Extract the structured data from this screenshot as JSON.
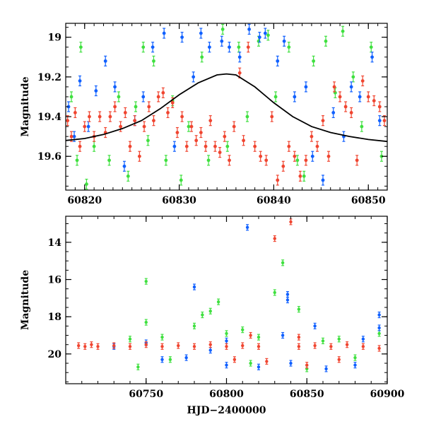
{
  "chart_data": [
    {
      "type": "scatter",
      "title": "",
      "xlabel": "",
      "ylabel": "Magnitude",
      "xlim": [
        60818,
        60852
      ],
      "ylim": [
        19.77,
        18.93
      ],
      "y_inverted": true,
      "xticks": [
        60820,
        60830,
        60840,
        60850
      ],
      "xtick_labels": [
        "60820",
        "60830",
        "60840",
        "60850"
      ],
      "yticks": [
        19.0,
        19.2,
        19.4,
        19.6
      ],
      "ytick_labels": [
        "19",
        "19.2",
        "19.4",
        "19.6"
      ],
      "grid": false,
      "colors": {
        "green": "#3fe03f",
        "blue": "#1060ff",
        "red": "#f04530",
        "model": "#000000"
      },
      "series": [
        {
          "color": "green",
          "points": [
            [
              60818.6,
              19.3
            ],
            [
              60819.2,
              19.62
            ],
            [
              60819.6,
              19.05
            ],
            [
              60820.2,
              19.74
            ],
            [
              60821.0,
              19.55
            ],
            [
              60822.6,
              19.62
            ],
            [
              60823.6,
              19.3
            ],
            [
              60824.6,
              19.7
            ],
            [
              60825.4,
              19.35
            ],
            [
              60826.2,
              19.05
            ],
            [
              60826.7,
              19.52
            ],
            [
              60827.3,
              19.12
            ],
            [
              60828.6,
              19.62
            ],
            [
              60829.3,
              19.32
            ],
            [
              60830.2,
              19.72
            ],
            [
              60831.0,
              19.45
            ],
            [
              60832.4,
              19.1
            ],
            [
              60833.1,
              19.62
            ],
            [
              60834.6,
              18.96
            ],
            [
              60835.1,
              19.55
            ],
            [
              60836.3,
              19.05
            ],
            [
              60837.2,
              19.4
            ],
            [
              60838.4,
              19.02
            ],
            [
              60839.4,
              18.99
            ],
            [
              60840.2,
              19.3
            ],
            [
              60841.6,
              19.05
            ],
            [
              60842.5,
              19.62
            ],
            [
              60843.2,
              19.7
            ],
            [
              60844.2,
              19.12
            ],
            [
              60845.5,
              19.02
            ],
            [
              60846.5,
              19.28
            ],
            [
              60847.3,
              18.97
            ],
            [
              60848.4,
              19.2
            ],
            [
              60849.3,
              19.45
            ],
            [
              60850.3,
              19.05
            ],
            [
              60851.4,
              19.6
            ]
          ]
        },
        {
          "color": "blue",
          "points": [
            [
              60818.3,
              19.35
            ],
            [
              60818.9,
              19.5
            ],
            [
              60819.5,
              19.22
            ],
            [
              60820.4,
              19.45
            ],
            [
              60821.2,
              19.27
            ],
            [
              60822.2,
              19.12
            ],
            [
              60823.2,
              19.25
            ],
            [
              60824.2,
              19.65
            ],
            [
              60825.3,
              19.42
            ],
            [
              60826.2,
              19.3
            ],
            [
              60827.2,
              19.05
            ],
            [
              60828.4,
              18.98
            ],
            [
              60829.5,
              19.55
            ],
            [
              60830.3,
              19.0
            ],
            [
              60831.5,
              19.2
            ],
            [
              60832.3,
              18.98
            ],
            [
              60833.2,
              19.05
            ],
            [
              60834.5,
              19.02
            ],
            [
              60835.3,
              19.05
            ],
            [
              60836.4,
              19.1
            ],
            [
              60837.4,
              18.96
            ],
            [
              60838.5,
              19.0
            ],
            [
              60839.1,
              18.98
            ],
            [
              60840.4,
              19.12
            ],
            [
              60841.1,
              19.02
            ],
            [
              60842.2,
              19.3
            ],
            [
              60843.4,
              19.25
            ],
            [
              60844.1,
              19.6
            ],
            [
              60845.2,
              19.72
            ],
            [
              60846.3,
              19.38
            ],
            [
              60847.4,
              19.5
            ],
            [
              60848.2,
              19.25
            ],
            [
              60849.1,
              19.3
            ],
            [
              60850.4,
              19.1
            ],
            [
              60851.2,
              19.42
            ]
          ]
        },
        {
          "color": "red",
          "points": [
            [
              60818.2,
              19.42
            ],
            [
              60818.6,
              19.5
            ],
            [
              60819.0,
              19.38
            ],
            [
              60819.5,
              19.55
            ],
            [
              60820.0,
              19.45
            ],
            [
              60820.5,
              19.4
            ],
            [
              60821.0,
              19.5
            ],
            [
              60821.6,
              19.4
            ],
            [
              60822.2,
              19.48
            ],
            [
              60822.7,
              19.4
            ],
            [
              60823.2,
              19.35
            ],
            [
              60823.8,
              19.45
            ],
            [
              60824.3,
              19.38
            ],
            [
              60824.8,
              19.55
            ],
            [
              60825.3,
              19.42
            ],
            [
              60825.8,
              19.6
            ],
            [
              60826.3,
              19.45
            ],
            [
              60826.8,
              19.35
            ],
            [
              60827.3,
              19.42
            ],
            [
              60827.8,
              19.3
            ],
            [
              60828.3,
              19.28
            ],
            [
              60828.8,
              19.38
            ],
            [
              60829.3,
              19.33
            ],
            [
              60829.8,
              19.48
            ],
            [
              60830.3,
              19.4
            ],
            [
              60830.8,
              19.55
            ],
            [
              60831.3,
              19.45
            ],
            [
              60831.8,
              19.52
            ],
            [
              60832.3,
              19.48
            ],
            [
              60832.8,
              19.55
            ],
            [
              60833.3,
              19.42
            ],
            [
              60833.8,
              19.55
            ],
            [
              60834.3,
              19.58
            ],
            [
              60834.8,
              19.5
            ],
            [
              60835.3,
              19.62
            ],
            [
              60835.8,
              19.45
            ],
            [
              60836.4,
              19.18
            ],
            [
              60836.8,
              19.52
            ],
            [
              60837.3,
              19.05
            ],
            [
              60838.0,
              19.55
            ],
            [
              60838.6,
              19.6
            ],
            [
              60839.2,
              19.62
            ],
            [
              60839.8,
              19.4
            ],
            [
              60840.4,
              19.72
            ],
            [
              60841.0,
              19.65
            ],
            [
              60841.6,
              19.55
            ],
            [
              60842.2,
              19.6
            ],
            [
              60842.8,
              19.7
            ],
            [
              60843.4,
              19.62
            ],
            [
              60844.0,
              19.5
            ],
            [
              60844.6,
              19.55
            ],
            [
              60845.2,
              19.42
            ],
            [
              60845.8,
              19.6
            ],
            [
              60846.4,
              19.25
            ],
            [
              60847.0,
              19.3
            ],
            [
              60847.6,
              19.35
            ],
            [
              60848.2,
              19.38
            ],
            [
              60848.8,
              19.62
            ],
            [
              60849.4,
              19.22
            ],
            [
              60850.0,
              19.3
            ],
            [
              60850.6,
              19.32
            ],
            [
              60851.2,
              19.35
            ],
            [
              60851.7,
              19.42
            ]
          ]
        },
        {
          "color": "model",
          "kind": "line",
          "points": [
            [
              60818.0,
              19.52
            ],
            [
              60820.0,
              19.51
            ],
            [
              60822.0,
              19.49
            ],
            [
              60824.0,
              19.46
            ],
            [
              60826.0,
              19.42
            ],
            [
              60828.0,
              19.36
            ],
            [
              60830.0,
              19.29
            ],
            [
              60832.0,
              19.23
            ],
            [
              60834.0,
              19.19
            ],
            [
              60835.0,
              19.185
            ],
            [
              60836.0,
              19.19
            ],
            [
              60838.0,
              19.25
            ],
            [
              60840.0,
              19.33
            ],
            [
              60842.0,
              19.4
            ],
            [
              60844.0,
              19.45
            ],
            [
              60846.0,
              19.48
            ],
            [
              60848.0,
              19.5
            ],
            [
              60850.0,
              19.515
            ],
            [
              60852.0,
              19.525
            ]
          ]
        }
      ]
    },
    {
      "type": "scatter",
      "title": "",
      "xlabel": "HJD−2400000",
      "ylabel": "Magnitude",
      "xlim": [
        60700,
        60900
      ],
      "ylim": [
        21.6,
        12.6
      ],
      "y_inverted": true,
      "xticks": [
        60750,
        60800,
        60850,
        60900
      ],
      "xtick_labels": [
        "60750",
        "60800",
        "60850",
        "60900"
      ],
      "yticks": [
        14,
        16,
        18,
        20
      ],
      "ytick_labels": [
        "14",
        "16",
        "18",
        "20"
      ],
      "grid": false,
      "colors": {
        "green": "#3fe03f",
        "blue": "#1060ff",
        "red": "#f04530"
      },
      "series": [
        {
          "color": "green",
          "points": [
            [
              60750,
              16.1
            ],
            [
              60750,
              18.3
            ],
            [
              60760,
              19.1
            ],
            [
              60780,
              18.5
            ],
            [
              60785,
              17.9
            ],
            [
              60790,
              17.7
            ],
            [
              60795,
              17.2
            ],
            [
              60800,
              18.9
            ],
            [
              60810,
              18.7
            ],
            [
              60830,
              16.7
            ],
            [
              60835,
              15.1
            ],
            [
              60845,
              17.6
            ],
            [
              60870,
              19.2
            ],
            [
              60895,
              18.9
            ],
            [
              60745,
              20.7
            ],
            [
              60765,
              20.3
            ],
            [
              60815,
              20.5
            ],
            [
              60850,
              20.8
            ],
            [
              60880,
              20.2
            ],
            [
              60740,
              19.2
            ],
            [
              60820,
              19.1
            ],
            [
              60860,
              19.3
            ]
          ]
        },
        {
          "color": "blue",
          "points": [
            [
              60780,
              16.4
            ],
            [
              60813,
              13.2
            ],
            [
              60838,
              17.1
            ],
            [
              60838,
              16.8
            ],
            [
              60895,
              17.9
            ],
            [
              60895,
              18.6
            ],
            [
              60855,
              18.5
            ],
            [
              60760,
              20.3
            ],
            [
              60775,
              20.2
            ],
            [
              60800,
              20.6
            ],
            [
              60820,
              20.7
            ],
            [
              60840,
              20.5
            ],
            [
              60862,
              20.8
            ],
            [
              60880,
              20.6
            ],
            [
              60750,
              19.4
            ],
            [
              60800,
              19.3
            ],
            [
              60835,
              19.0
            ],
            [
              60885,
              19.2
            ],
            [
              60730,
              19.6
            ],
            [
              60790,
              19.8
            ]
          ]
        },
        {
          "color": "red",
          "points": [
            [
              60708,
              19.55
            ],
            [
              60712,
              19.6
            ],
            [
              60716,
              19.5
            ],
            [
              60720,
              19.6
            ],
            [
              60730,
              19.55
            ],
            [
              60740,
              19.6
            ],
            [
              60750,
              19.5
            ],
            [
              60760,
              19.6
            ],
            [
              60770,
              19.55
            ],
            [
              60780,
              19.6
            ],
            [
              60790,
              19.5
            ],
            [
              60800,
              19.6
            ],
            [
              60810,
              19.55
            ],
            [
              60820,
              19.6
            ],
            [
              60830,
              13.8
            ],
            [
              60840,
              12.9
            ],
            [
              60845,
              19.6
            ],
            [
              60855,
              19.55
            ],
            [
              60865,
              19.6
            ],
            [
              60875,
              19.5
            ],
            [
              60885,
              19.6
            ],
            [
              60895,
              19.7
            ],
            [
              60805,
              20.3
            ],
            [
              60825,
              20.4
            ],
            [
              60850,
              20.6
            ],
            [
              60870,
              20.3
            ],
            [
              60815,
              19.0
            ],
            [
              60845,
              19.1
            ]
          ]
        }
      ]
    }
  ]
}
